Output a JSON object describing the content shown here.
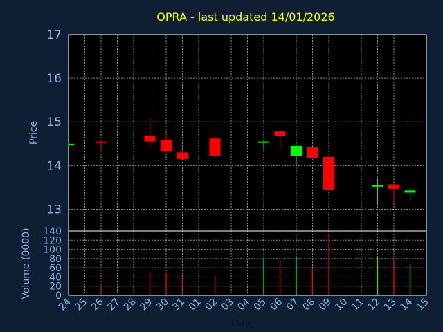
{
  "title": "OPRA - last updated 14/01/2026",
  "colors": {
    "background": "#0f1f33",
    "plot_background": "#000000",
    "grid": "#c0c0c0",
    "title": "#ffff00",
    "ticks": "#8db7e6",
    "up": "#00ff00",
    "down": "#ff0000"
  },
  "chart_data": [
    {
      "type": "candlestick",
      "ylabel": "Price",
      "ylim": [
        12.5,
        17
      ],
      "yticks": [
        13,
        14,
        15,
        16,
        17
      ],
      "grid": true,
      "x_tick_labels": [
        "24",
        "25",
        "26",
        "27",
        "28",
        "29",
        "30",
        "31",
        "01",
        "02",
        "03",
        "04",
        "05",
        "06",
        "07",
        "08",
        "09",
        "10",
        "11",
        "12",
        "13",
        "14",
        "15"
      ],
      "candles": [
        {
          "day": "24",
          "open": 14.5,
          "high": 14.52,
          "low": 14.48,
          "close": 14.5
        },
        {
          "day": "26",
          "open": 14.55,
          "high": 14.58,
          "low": 14.3,
          "close": 14.52
        },
        {
          "day": "29",
          "open": 14.68,
          "high": 15.1,
          "low": 14.4,
          "close": 14.55
        },
        {
          "day": "30",
          "open": 14.58,
          "high": 14.75,
          "low": 14.3,
          "close": 14.33
        },
        {
          "day": "31",
          "open": 14.3,
          "high": 14.38,
          "low": 14.15,
          "close": 14.15
        },
        {
          "day": "02",
          "open": 14.62,
          "high": 14.68,
          "low": 14.15,
          "close": 14.22
        },
        {
          "day": "05",
          "open": 14.53,
          "high": 14.6,
          "low": 14.35,
          "close": 14.55
        },
        {
          "day": "06",
          "open": 14.78,
          "high": 14.78,
          "low": 14.4,
          "close": 14.67
        },
        {
          "day": "07",
          "open": 14.22,
          "high": 14.45,
          "low": 14.02,
          "close": 14.45
        },
        {
          "day": "08",
          "open": 14.43,
          "high": 14.43,
          "low": 14.2,
          "close": 14.18
        },
        {
          "day": "09",
          "open": 14.2,
          "high": 14.2,
          "low": 13.45,
          "close": 13.45
        },
        {
          "day": "12",
          "open": 13.52,
          "high": 13.7,
          "low": 13.12,
          "close": 13.55
        },
        {
          "day": "13",
          "open": 13.57,
          "high": 13.6,
          "low": 13.15,
          "close": 13.47
        },
        {
          "day": "14",
          "open": 13.38,
          "high": 13.48,
          "low": 13.2,
          "close": 13.43
        }
      ]
    },
    {
      "type": "bar",
      "ylabel": "Volume (0000)",
      "xlabel": "Day",
      "ylim": [
        0,
        140
      ],
      "yticks": [
        0,
        20,
        40,
        60,
        80,
        100,
        120,
        140
      ],
      "grid": true,
      "bars": [
        {
          "day": "26",
          "value": 22,
          "direction": "down"
        },
        {
          "day": "29",
          "value": 50,
          "direction": "down"
        },
        {
          "day": "30",
          "value": 50,
          "direction": "down"
        },
        {
          "day": "31",
          "value": 42,
          "direction": "down"
        },
        {
          "day": "02",
          "value": 42,
          "direction": "down"
        },
        {
          "day": "05",
          "value": 80,
          "direction": "up"
        },
        {
          "day": "06",
          "value": 80,
          "direction": "down"
        },
        {
          "day": "07",
          "value": 84,
          "direction": "up"
        },
        {
          "day": "08",
          "value": 60,
          "direction": "down"
        },
        {
          "day": "09",
          "value": 135,
          "direction": "down"
        },
        {
          "day": "12",
          "value": 84,
          "direction": "up"
        },
        {
          "day": "13",
          "value": 80,
          "direction": "down"
        },
        {
          "day": "14",
          "value": 68,
          "direction": "up"
        }
      ]
    }
  ]
}
